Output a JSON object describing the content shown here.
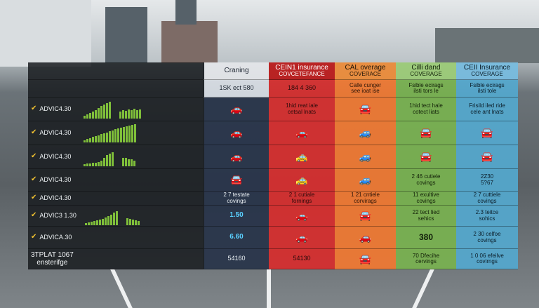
{
  "header": {
    "col1": "Craning",
    "col2": "CEIN1 insurance",
    "col2_sub": "COVCETEFANCE",
    "col3": "CAL overage",
    "col3_sub": "COVERACE",
    "col4": "Cilli dand",
    "col4_sub": "COVERAGE",
    "col5": "CEII Insurance",
    "col5_sub": "COVERAGE"
  },
  "subheader": {
    "col1": "1SK ect 580",
    "col2": "184 4 360",
    "col3": "Calle cunger\nsee ioat ise",
    "col4": "Fsible ecirags\nilsti tors le",
    "col5": "Fsible ecirags\nilsti tole"
  },
  "rows": [
    {
      "label": "ADVIC4.30",
      "col2": "1hid reat iale\ncetsal lnats",
      "col4": "1hid tect hale\ncotect liats",
      "col5": "Frisild iled ride\ncele ant lnats"
    },
    {
      "label": "ADVIC4.30"
    },
    {
      "label": "ADVIC4.30"
    },
    {
      "label": "ADVIC4.30",
      "col4": "2 46 cutiele\ncovings",
      "col5": "2Z30\n5?67"
    },
    {
      "label": "ADVIC4.30",
      "col1": "2 7 testate\ncovings",
      "col2": "2 1 cutiale\nfornings",
      "col3": "1 21 cntiele\ncorvirags",
      "col4": "11 exultive\ncovings",
      "col5": "2 7 cuttiele\ncovings"
    },
    {
      "label": "ADVIC3 1.30",
      "col1": "1.50",
      "col4": "22 tect lied\nsehics",
      "col5": "2.3 teitce\nsohics"
    },
    {
      "label": "ADVICA.30",
      "col1": "6.60",
      "col4": "380",
      "col5": "2 30 celfoe\ncovings"
    }
  ],
  "footer": {
    "label_line1": "3TPLAT 1067",
    "label_line2": "ensterifge",
    "col1": "54160",
    "col2": "54130",
    "col4": "70 Dfecihe\ncervings",
    "col5": "1 0 06 efeilve\ncovirngs"
  },
  "colors": {
    "col2": "#d72c2c",
    "col3": "#f07832",
    "col4": "#78b250",
    "col5": "#54a8ce"
  },
  "icons": {
    "check": "check-icon",
    "car": "car-icon"
  }
}
